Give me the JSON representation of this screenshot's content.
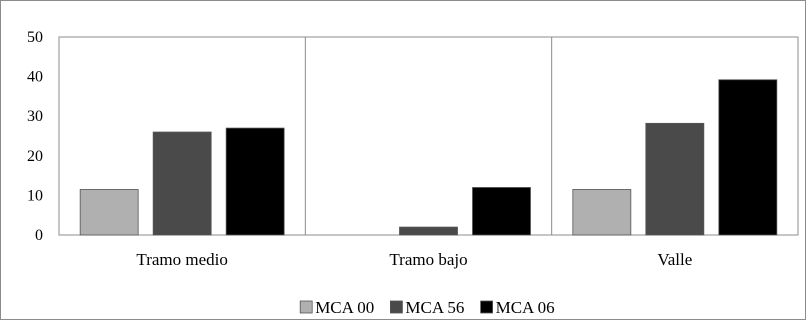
{
  "chart_data": {
    "type": "bar",
    "categories": [
      "Tramo medio",
      "Tramo bajo",
      "Valle"
    ],
    "series": [
      {
        "name": "MCA  00",
        "values": [
          11.5,
          0,
          11.5
        ],
        "color": "#b0b0b0"
      },
      {
        "name": "MCA  56",
        "values": [
          26,
          2,
          28.2
        ],
        "color": "#4a4a4a"
      },
      {
        "name": "MCA  06",
        "values": [
          27,
          12,
          39.2
        ],
        "color": "#000000"
      }
    ],
    "title": "",
    "xlabel": "",
    "ylabel": "",
    "ylim": [
      0,
      50
    ],
    "yticks": [
      0,
      10,
      20,
      30,
      40,
      50
    ],
    "grid": "vertical category separators",
    "legend": "bottom-center"
  }
}
